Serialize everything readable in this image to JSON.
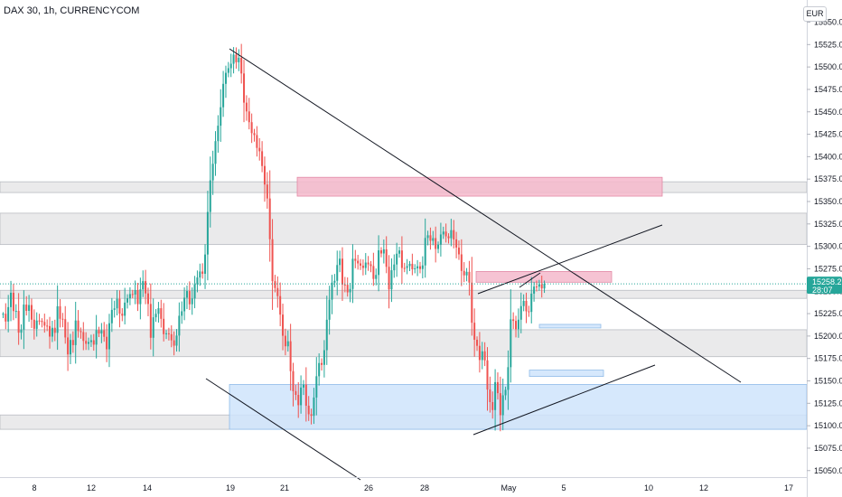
{
  "header": {
    "title": "DAX 30, 1h, CURRENCYCOM",
    "currency": "EUR"
  },
  "price_tag": {
    "price": "15258.2",
    "countdown": "28:07",
    "color": "#26a69a"
  },
  "colors": {
    "up": "#26a69a",
    "down": "#ef5350",
    "zone_gray": "#e6e6e8",
    "zone_pink": "#f4b8cb",
    "zone_blue": "#cfe4fb",
    "trendline": "#131722"
  },
  "chart_data": {
    "type": "candlestick",
    "title": "DAX 30, 1h, CURRENCYCOM",
    "ylim": [
      15040,
      15565
    ],
    "grid": false,
    "y_ticks": [
      15550.0,
      15525.0,
      15500.0,
      15475.0,
      15450.0,
      15425.0,
      15400.0,
      15375.0,
      15350.0,
      15325.0,
      15300.0,
      15275.0,
      15250.0,
      15225.0,
      15200.0,
      15175.0,
      15150.0,
      15125.0,
      15100.0,
      15075.0,
      15050.0
    ],
    "x_ticks": [
      "8",
      "12",
      "14",
      "19",
      "21",
      "26",
      "28",
      "May",
      "5",
      "10",
      "12",
      "17"
    ],
    "series": [
      {
        "segment": "a",
        "start": 15230,
        "end": 15215,
        "points": 18,
        "waves": [
          [
            18,
            3.1,
            0
          ],
          [
            10,
            7.3,
            1
          ]
        ]
      },
      {
        "segment": "b",
        "start": 15215,
        "end": 15190,
        "points": 18,
        "waves": [
          [
            20,
            2.6,
            2
          ],
          [
            11,
            8.1,
            3
          ]
        ]
      },
      {
        "segment": "c",
        "start": 15190,
        "end": 15255,
        "points": 16,
        "waves": [
          [
            17,
            2.9,
            4
          ],
          [
            9,
            6.7,
            5
          ]
        ]
      },
      {
        "segment": "d",
        "start": 15255,
        "end": 15195,
        "points": 14,
        "waves": [
          [
            22,
            3.3,
            6
          ],
          [
            10,
            7.9,
            7
          ]
        ]
      },
      {
        "segment": "e",
        "start": 15195,
        "end": 15280,
        "points": 12,
        "waves": [
          [
            14,
            2.7,
            8
          ],
          [
            8,
            6.1,
            9
          ]
        ]
      },
      {
        "segment": "f",
        "start": 15280,
        "end": 15480,
        "points": 8,
        "waves": [
          [
            22,
            2.2,
            10
          ],
          [
            9,
            5.3,
            11
          ]
        ]
      },
      {
        "segment": "g",
        "start": 15480,
        "end": 15515,
        "points": 4,
        "waves": [
          [
            6,
            2.1,
            12
          ],
          [
            4,
            4.2,
            13
          ]
        ]
      },
      {
        "segment": "h",
        "start": 15515,
        "end": 15400,
        "points": 10,
        "waves": [
          [
            15,
            2.5,
            14
          ],
          [
            8,
            5.9,
            15
          ]
        ]
      },
      {
        "segment": "i",
        "start": 15400,
        "end": 15180,
        "points": 10,
        "waves": [
          [
            24,
            2.4,
            16
          ],
          [
            10,
            5.7,
            17
          ]
        ]
      },
      {
        "segment": "j",
        "start": 15180,
        "end": 15105,
        "points": 10,
        "waves": [
          [
            26,
            2.8,
            18
          ],
          [
            11,
            6.3,
            19
          ]
        ]
      },
      {
        "segment": "k",
        "start": 15105,
        "end": 15260,
        "points": 8,
        "waves": [
          [
            18,
            2.3,
            20
          ],
          [
            8,
            5.1,
            21
          ]
        ]
      },
      {
        "segment": "l",
        "start": 15260,
        "end": 15280,
        "points": 14,
        "waves": [
          [
            22,
            2.7,
            22
          ],
          [
            10,
            6.9,
            23
          ]
        ]
      },
      {
        "segment": "m",
        "start": 15280,
        "end": 15280,
        "points": 18,
        "waves": [
          [
            21,
            3.0,
            24
          ],
          [
            9,
            7.1,
            25
          ]
        ]
      },
      {
        "segment": "n",
        "start": 15280,
        "end": 15320,
        "points": 12,
        "waves": [
          [
            17,
            2.6,
            26
          ],
          [
            8,
            6.5,
            27
          ]
        ]
      },
      {
        "segment": "o",
        "start": 15320,
        "end": 15260,
        "points": 8,
        "waves": [
          [
            16,
            2.4,
            28
          ],
          [
            8,
            5.5,
            29
          ]
        ]
      },
      {
        "segment": "p",
        "start": 15260,
        "end": 15110,
        "points": 10,
        "waves": [
          [
            24,
            2.8,
            30
          ],
          [
            12,
            6.0,
            31
          ]
        ]
      },
      {
        "segment": "q",
        "start": 15110,
        "end": 15240,
        "points": 12,
        "waves": [
          [
            34,
            2.6,
            32
          ],
          [
            16,
            6.2,
            33
          ]
        ]
      },
      {
        "segment": "r",
        "start": 15240,
        "end": 15255,
        "points": 8,
        "waves": [
          [
            16,
            2.3,
            34
          ],
          [
            7,
            5.4,
            35
          ]
        ]
      }
    ],
    "last_price": 15258.2,
    "zones": [
      {
        "kind": "gray",
        "y1": 15360,
        "y2": 15372
      },
      {
        "kind": "gray",
        "y1": 15302,
        "y2": 15337
      },
      {
        "kind": "gray",
        "y1": 15242,
        "y2": 15251
      },
      {
        "kind": "gray",
        "y1": 15177,
        "y2": 15207
      },
      {
        "kind": "gray",
        "y1": 15096,
        "y2": 15112
      },
      {
        "kind": "pink",
        "y1": 15356,
        "y2": 15377
      },
      {
        "kind": "pink",
        "y1": 15260,
        "y2": 15272
      },
      {
        "kind": "blue",
        "y1": 15096,
        "y2": 15146
      },
      {
        "kind": "blue",
        "y1": 15209,
        "y2": 15213
      },
      {
        "kind": "blue",
        "y1": 15155,
        "y2": 15162
      }
    ]
  }
}
